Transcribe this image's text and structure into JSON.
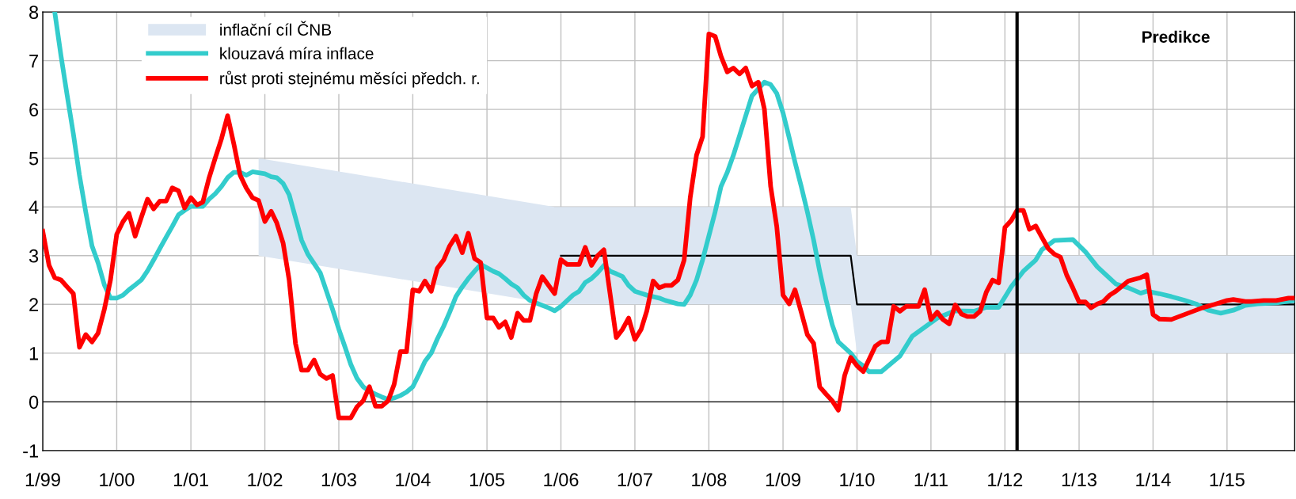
{
  "chart_data": {
    "type": "line",
    "xlim": [
      "1999-01",
      "2015-12"
    ],
    "ylim": [
      -1,
      8
    ],
    "xticks": [
      {
        "value": "1999-01",
        "label": "1/99"
      },
      {
        "value": "2000-01",
        "label": "1/00"
      },
      {
        "value": "2001-01",
        "label": "1/01"
      },
      {
        "value": "2002-01",
        "label": "1/02"
      },
      {
        "value": "2003-01",
        "label": "1/03"
      },
      {
        "value": "2004-01",
        "label": "1/04"
      },
      {
        "value": "2005-01",
        "label": "1/05"
      },
      {
        "value": "2006-01",
        "label": "1/06"
      },
      {
        "value": "2007-01",
        "label": "1/07"
      },
      {
        "value": "2008-01",
        "label": "1/08"
      },
      {
        "value": "2009-01",
        "label": "1/09"
      },
      {
        "value": "2010-01",
        "label": "1/10"
      },
      {
        "value": "2011-01",
        "label": "1/11"
      },
      {
        "value": "2012-01",
        "label": "1/12"
      },
      {
        "value": "2013-01",
        "label": "1/13"
      },
      {
        "value": "2014-01",
        "label": "1/14"
      },
      {
        "value": "2015-01",
        "label": "1/15"
      }
    ],
    "yticks": [
      -1,
      0,
      1,
      2,
      3,
      4,
      5,
      6,
      7,
      8
    ],
    "grid": true,
    "legend": "top left",
    "series": [
      {
        "name": "inflační cíl ČNB",
        "color": "#dce6f2",
        "x": [
          "2001-12",
          "2005-12",
          "2009-12",
          "2010-01",
          "2015-12"
        ],
        "values": [
          null,
          null,
          null,
          null,
          null
        ],
        "lower": [
          3,
          2,
          2,
          1,
          1
        ],
        "upper": [
          5,
          4,
          4,
          3,
          3
        ]
      },
      {
        "color": "#000000",
        "x": [
          "2006-01",
          "2009-12",
          "2010-01",
          "2015-12"
        ],
        "values": [
          3,
          3,
          2,
          2
        ]
      },
      {
        "name": "klouzavá míra inflace",
        "color": "#33cccc",
        "x": [
          "1999-03",
          "1999-04",
          "1999-05",
          "1999-06",
          "1999-07",
          "1999-08",
          "1999-09",
          "1999-10",
          "1999-11",
          "1999-12",
          "2000-01",
          "2000-02",
          "2000-03",
          "2000-04",
          "2000-05",
          "2000-06",
          "2000-07",
          "2000-08",
          "2000-09",
          "2000-10",
          "2000-11",
          "2000-12",
          "2001-01",
          "2001-03",
          "2001-04",
          "2001-05",
          "2001-06",
          "2001-07",
          "2001-08",
          "2001-09",
          "2001-10",
          "2001-11",
          "2002-01",
          "2002-02",
          "2002-03",
          "2002-04",
          "2002-05",
          "2002-06",
          "2002-07",
          "2002-08",
          "2002-10",
          "2002-11",
          "2002-12",
          "2003-01",
          "2003-02",
          "2003-03",
          "2003-04",
          "2003-05",
          "2003-06",
          "2003-07",
          "2003-08",
          "2003-09",
          "2003-10",
          "2003-11",
          "2003-12",
          "2004-01",
          "2004-02",
          "2004-03",
          "2004-04",
          "2004-05",
          "2004-06",
          "2004-07",
          "2004-08",
          "2004-09",
          "2004-10",
          "2004-11",
          "2004-12",
          "2005-01",
          "2005-02",
          "2005-03",
          "2005-04",
          "2005-05",
          "2005-06",
          "2005-07",
          "2005-08",
          "2005-10",
          "2005-11",
          "2005-12",
          "2006-01",
          "2006-02",
          "2006-03",
          "2006-04",
          "2006-05",
          "2006-06",
          "2006-07",
          "2006-08",
          "2006-09",
          "2006-10",
          "2006-11",
          "2006-12",
          "2007-01",
          "2007-03",
          "2007-05",
          "2007-06",
          "2007-08",
          "2007-09",
          "2007-10",
          "2007-11",
          "2007-12",
          "2008-02",
          "2008-03",
          "2008-04",
          "2008-05",
          "2008-06",
          "2008-07",
          "2008-08",
          "2008-10",
          "2008-11",
          "2008-12",
          "2009-01",
          "2009-02",
          "2009-03",
          "2009-04",
          "2009-05",
          "2009-06",
          "2009-07",
          "2009-08",
          "2009-09",
          "2009-10",
          "2009-12",
          "2010-01",
          "2010-02",
          "2010-03",
          "2010-05",
          "2010-08",
          "2010-10",
          "2010-12",
          "2011-02",
          "2011-05",
          "2011-08",
          "2011-10",
          "2011-12",
          "2012-02",
          "2012-04",
          "2012-06",
          "2012-07",
          "2012-09",
          "2012-12",
          "2013-02",
          "2013-04",
          "2013-07",
          "2013-09",
          "2013-11",
          "2013-12",
          "2014-02",
          "2014-04",
          "2014-06",
          "2014-08",
          "2014-10",
          "2014-12",
          "2015-02",
          "2015-04",
          "2015-06",
          "2015-09",
          "2015-12"
        ],
        "values": [
          8.0,
          7.1,
          6.3,
          5.5,
          4.65,
          3.9,
          3.2,
          2.85,
          2.4,
          2.13,
          2.13,
          2.19,
          2.3,
          2.4,
          2.5,
          2.69,
          2.91,
          3.15,
          3.38,
          3.6,
          3.84,
          3.93,
          4.01,
          4.01,
          4.16,
          4.27,
          4.42,
          4.6,
          4.71,
          4.71,
          4.65,
          4.72,
          4.68,
          4.62,
          4.6,
          4.48,
          4.25,
          3.78,
          3.32,
          3.03,
          2.65,
          2.27,
          1.9,
          1.49,
          1.12,
          0.77,
          0.48,
          0.31,
          0.22,
          0.16,
          0.1,
          0.05,
          0.08,
          0.13,
          0.2,
          0.31,
          0.57,
          0.83,
          1.0,
          1.29,
          1.55,
          1.84,
          2.16,
          2.36,
          2.53,
          2.68,
          2.82,
          2.75,
          2.68,
          2.63,
          2.53,
          2.42,
          2.34,
          2.19,
          2.08,
          1.98,
          1.93,
          1.87,
          1.96,
          2.08,
          2.19,
          2.27,
          2.45,
          2.53,
          2.65,
          2.8,
          2.68,
          2.63,
          2.57,
          2.39,
          2.27,
          2.19,
          2.13,
          2.08,
          2.01,
          2.0,
          2.19,
          2.5,
          2.91,
          3.9,
          4.42,
          4.71,
          5.06,
          5.47,
          5.87,
          6.28,
          6.56,
          6.51,
          6.33,
          5.93,
          5.41,
          4.92,
          4.42,
          3.9,
          3.32,
          2.68,
          2.1,
          1.58,
          1.23,
          1.0,
          0.83,
          0.74,
          0.62,
          0.62,
          0.94,
          1.35,
          1.53,
          1.72,
          1.87,
          1.86,
          1.94,
          1.94,
          2.36,
          2.68,
          2.91,
          3.12,
          3.31,
          3.33,
          3.08,
          2.77,
          2.42,
          2.34,
          2.23,
          2.27,
          2.22,
          2.16,
          2.09,
          2.01,
          1.88,
          1.82,
          1.88,
          1.98,
          2.01,
          2.03,
          2.08
        ]
      },
      {
        "name": "růst proti stejnému měsíci předch. r.",
        "color": "#ff0000",
        "x": [
          "1999-01",
          "1999-02",
          "1999-03",
          "1999-04",
          "1999-05",
          "1999-06",
          "1999-07",
          "1999-08",
          "1999-09",
          "1999-10",
          "1999-11",
          "1999-12",
          "2000-01",
          "2000-02",
          "2000-03",
          "2000-04",
          "2000-05",
          "2000-06",
          "2000-07",
          "2000-08",
          "2000-09",
          "2000-10",
          "2000-11",
          "2000-12",
          "2001-01",
          "2001-02",
          "2001-03",
          "2001-04",
          "2001-05",
          "2001-06",
          "2001-07",
          "2001-08",
          "2001-09",
          "2001-10",
          "2001-11",
          "2001-12",
          "2002-01",
          "2002-02",
          "2002-03",
          "2002-04",
          "2002-05",
          "2002-06",
          "2002-07",
          "2002-08",
          "2002-09",
          "2002-10",
          "2002-11",
          "2002-12",
          "2003-01",
          "2003-02",
          "2003-03",
          "2003-04",
          "2003-05",
          "2003-06",
          "2003-07",
          "2003-08",
          "2003-09",
          "2003-10",
          "2003-11",
          "2003-12",
          "2004-01",
          "2004-02",
          "2004-03",
          "2004-04",
          "2004-05",
          "2004-06",
          "2004-07",
          "2004-08",
          "2004-09",
          "2004-10",
          "2004-11",
          "2004-12",
          "2005-01",
          "2005-02",
          "2005-03",
          "2005-04",
          "2005-05",
          "2005-06",
          "2005-07",
          "2005-08",
          "2005-09",
          "2005-10",
          "2005-11",
          "2005-12",
          "2006-01",
          "2006-02",
          "2006-03",
          "2006-04",
          "2006-05",
          "2006-06",
          "2006-07",
          "2006-08",
          "2006-10",
          "2006-11",
          "2006-12",
          "2007-01",
          "2007-02",
          "2007-03",
          "2007-04",
          "2007-05",
          "2007-06",
          "2007-07",
          "2007-08",
          "2007-09",
          "2007-10",
          "2007-11",
          "2007-12",
          "2008-01",
          "2008-02",
          "2008-03",
          "2008-04",
          "2008-05",
          "2008-06",
          "2008-07",
          "2008-08",
          "2008-09",
          "2008-10",
          "2008-11",
          "2008-12",
          "2009-01",
          "2009-02",
          "2009-03",
          "2009-04",
          "2009-05",
          "2009-06",
          "2009-07",
          "2009-08",
          "2009-09",
          "2009-10",
          "2009-11",
          "2009-12",
          "2010-01",
          "2010-02",
          "2010-04",
          "2010-05",
          "2010-06",
          "2010-07",
          "2010-08",
          "2010-09",
          "2010-11",
          "2010-12",
          "2011-01",
          "2011-02",
          "2011-03",
          "2011-04",
          "2011-05",
          "2011-06",
          "2011-07",
          "2011-08",
          "2011-09",
          "2011-10",
          "2011-11",
          "2011-12",
          "2012-01",
          "2012-02",
          "2012-03",
          "2012-04",
          "2012-05",
          "2012-06",
          "2012-07",
          "2012-08",
          "2012-09",
          "2012-10",
          "2012-11",
          "2012-12",
          "2013-01",
          "2013-02",
          "2013-03",
          "2013-04",
          "2013-05",
          "2013-06",
          "2013-07",
          "2013-09",
          "2013-11",
          "2013-12",
          "2014-01",
          "2014-02",
          "2014-04",
          "2014-09",
          "2014-11",
          "2015-01",
          "2015-02",
          "2015-04",
          "2015-05",
          "2015-07",
          "2015-09",
          "2015-11",
          "2015-12"
        ],
        "values": [
          3.5,
          2.8,
          2.55,
          2.5,
          2.36,
          2.22,
          1.12,
          1.38,
          1.23,
          1.41,
          1.9,
          2.5,
          3.44,
          3.7,
          3.87,
          3.4,
          3.78,
          4.16,
          3.96,
          4.12,
          4.12,
          4.39,
          4.33,
          3.98,
          4.19,
          4.04,
          4.1,
          4.6,
          5.0,
          5.4,
          5.87,
          5.29,
          4.65,
          4.39,
          4.19,
          4.13,
          3.7,
          3.91,
          3.67,
          3.26,
          2.5,
          1.2,
          0.65,
          0.65,
          0.86,
          0.57,
          0.48,
          0.54,
          -0.33,
          -0.33,
          -0.33,
          -0.1,
          0.02,
          0.31,
          -0.09,
          -0.09,
          0.02,
          0.36,
          1.03,
          1.03,
          2.3,
          2.27,
          2.48,
          2.27,
          2.74,
          2.91,
          3.2,
          3.4,
          3.06,
          3.46,
          2.94,
          2.86,
          1.72,
          1.72,
          1.53,
          1.64,
          1.32,
          1.82,
          1.67,
          1.67,
          2.22,
          2.57,
          2.39,
          2.22,
          2.92,
          2.82,
          2.82,
          2.82,
          3.17,
          2.8,
          3.0,
          3.12,
          1.32,
          1.49,
          1.72,
          1.28,
          1.49,
          1.87,
          2.48,
          2.34,
          2.39,
          2.39,
          2.5,
          2.91,
          4.19,
          5.06,
          5.44,
          7.55,
          7.5,
          7.09,
          6.77,
          6.85,
          6.73,
          6.85,
          6.48,
          6.56,
          6.01,
          4.42,
          3.6,
          2.19,
          2.01,
          2.3,
          1.84,
          1.38,
          1.2,
          0.31,
          0.16,
          0.02,
          -0.17,
          0.54,
          0.91,
          0.74,
          0.62,
          1.14,
          1.23,
          1.23,
          1.96,
          1.86,
          1.96,
          1.96,
          2.3,
          1.69,
          1.84,
          1.69,
          1.6,
          1.99,
          1.8,
          1.75,
          1.75,
          1.86,
          2.25,
          2.5,
          2.44,
          3.58,
          3.72,
          3.93,
          3.93,
          3.54,
          3.61,
          3.38,
          3.15,
          3.03,
          2.97,
          2.6,
          2.34,
          2.05,
          2.05,
          1.93,
          2.01,
          2.06,
          2.19,
          2.27,
          2.48,
          2.55,
          2.61,
          1.79,
          1.7,
          1.69,
          1.93,
          2.0,
          2.08,
          2.1,
          2.06,
          2.06,
          2.08,
          2.08,
          2.13,
          2.13
        ]
      }
    ],
    "ref_lines": [
      {
        "axis": "y",
        "value": 0,
        "color": "#000000"
      },
      {
        "axis": "x",
        "value": "2012-03",
        "color": "#000000"
      }
    ],
    "annotations": [
      "Predikce"
    ]
  }
}
